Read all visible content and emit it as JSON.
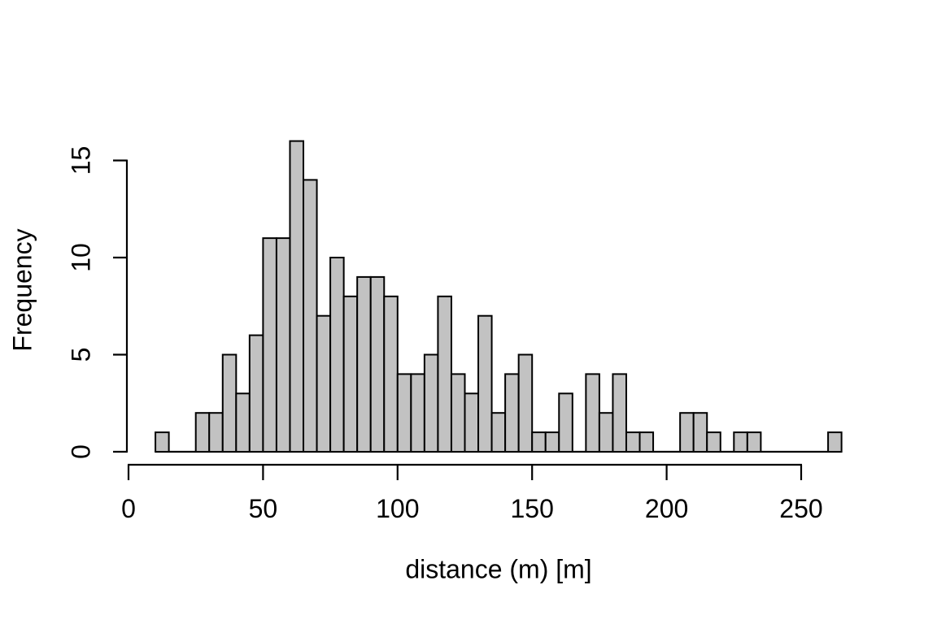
{
  "figure": {
    "background": "#ffffff"
  },
  "chart_data": {
    "type": "bar",
    "subtype": "histogram",
    "title": "",
    "xlabel": "distance (m) [m]",
    "ylabel": "Frequency",
    "grid": false,
    "legend": null,
    "bin_width": 5,
    "bin_starts": [
      10,
      15,
      20,
      25,
      30,
      35,
      40,
      45,
      50,
      55,
      60,
      65,
      70,
      75,
      80,
      85,
      90,
      95,
      100,
      105,
      110,
      115,
      120,
      125,
      130,
      135,
      140,
      145,
      150,
      155,
      160,
      165,
      170,
      175,
      180,
      185,
      190,
      195,
      200,
      205,
      210,
      215,
      220,
      225,
      230,
      235,
      240,
      245,
      250,
      255,
      260
    ],
    "counts": [
      1,
      0,
      0,
      2,
      2,
      5,
      3,
      6,
      11,
      11,
      16,
      14,
      7,
      10,
      8,
      9,
      9,
      8,
      4,
      4,
      5,
      8,
      4,
      3,
      7,
      2,
      4,
      5,
      1,
      1,
      3,
      0,
      4,
      2,
      4,
      1,
      1,
      0,
      0,
      2,
      2,
      1,
      0,
      1,
      1,
      0,
      0,
      0,
      0,
      0,
      1
    ],
    "x_ticks": [
      0,
      50,
      100,
      150,
      200,
      250
    ],
    "y_ticks": [
      0,
      5,
      10,
      15
    ],
    "xlim": [
      0,
      265
    ],
    "ylim": [
      0,
      16
    ],
    "colors": {
      "bar_fill": "#c2c2c2",
      "bar_stroke": "#000000",
      "axis": "#000000",
      "text": "#000000"
    }
  }
}
